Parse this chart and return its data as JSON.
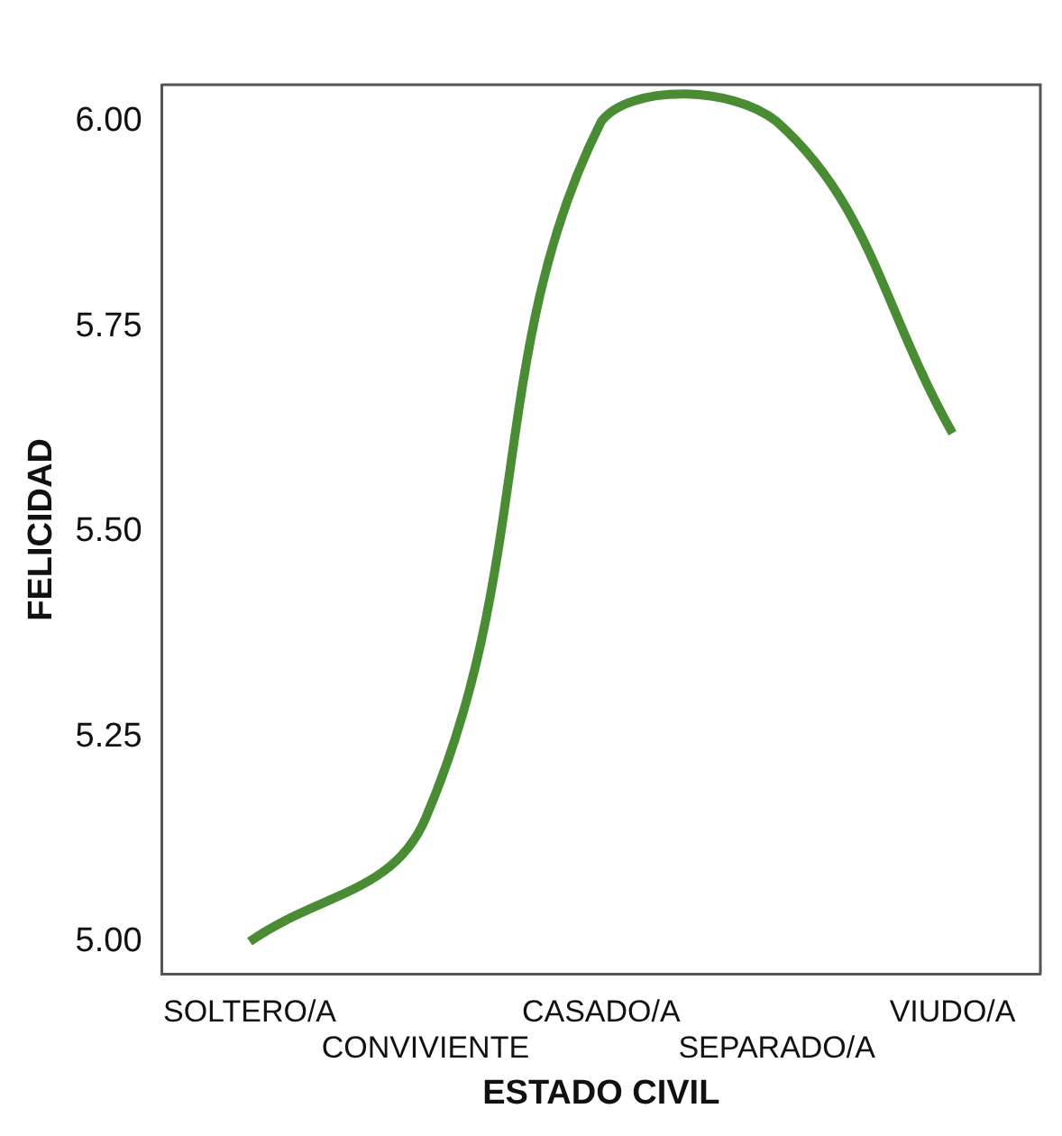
{
  "chart_data": {
    "type": "line",
    "xlabel": "ESTADO CIVIL",
    "ylabel": "FELICIDAD",
    "categories": [
      "SOLTERO/A",
      "CONVIVIENTE",
      "CASADO/A",
      "SEPARADO/A",
      "VIUDO/A"
    ],
    "series": [
      {
        "color": "#4a8c34",
        "values": [
          5.0,
          5.15,
          6.0,
          6.0,
          5.62
        ]
      }
    ],
    "ylim": [
      4.96,
      6.045
    ],
    "yticks": [
      {
        "value": 5,
        "label": "5.00"
      },
      {
        "value": 5.25,
        "label": "5.25"
      },
      {
        "value": 5.5,
        "label": "5.50"
      },
      {
        "value": 5.75,
        "label": "5.75"
      },
      {
        "value": 6,
        "label": "6.00"
      }
    ],
    "grid": false,
    "legend": false,
    "marker": "none",
    "line_style": "solid"
  }
}
